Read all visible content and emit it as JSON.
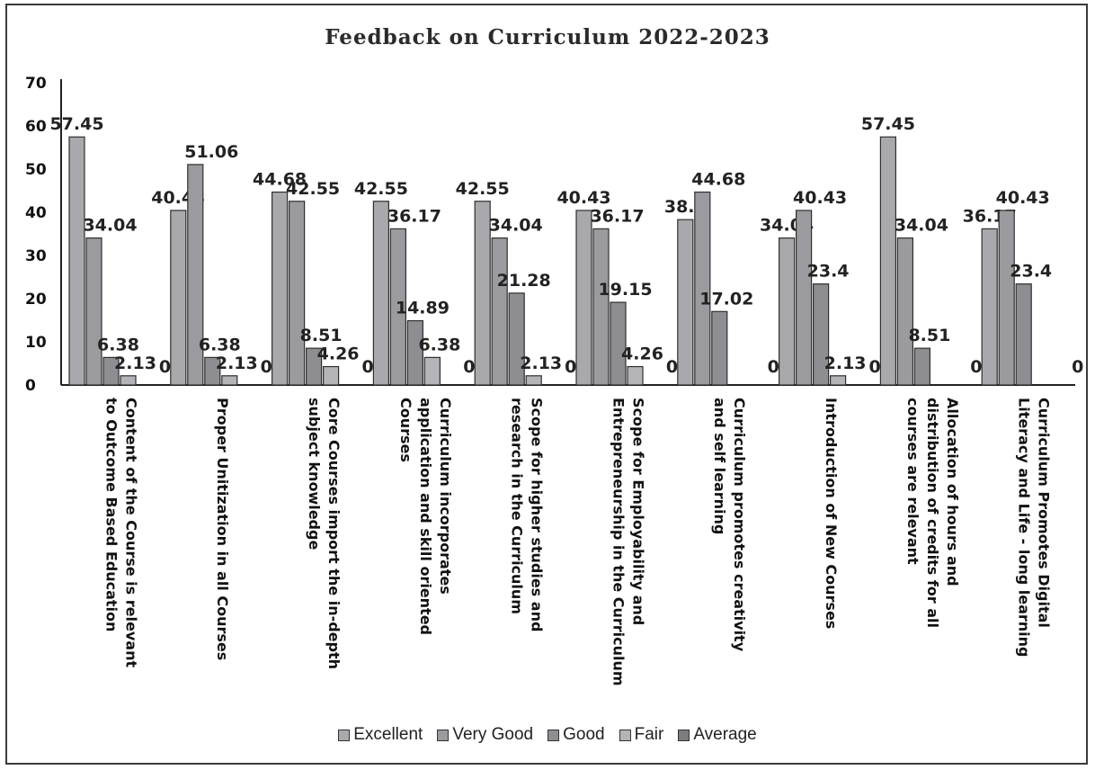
{
  "chart_data": {
    "type": "bar",
    "title": "Feedback on Curriculum 2022-2023",
    "xlabel": "",
    "ylabel": "",
    "ylim": [
      0,
      70
    ],
    "yticks": [
      0,
      10,
      20,
      30,
      40,
      50,
      60,
      70
    ],
    "grid": false,
    "legend_position": "bottom",
    "categories": [
      [
        "Content of the Course is relevant",
        "to Outcome Based Education"
      ],
      [
        "Proper Unitization in all Courses"
      ],
      [
        "Core Courses import the in-depth",
        "subject knowledge"
      ],
      [
        "Curriculum incorporates",
        "application and skill oriented",
        "Courses"
      ],
      [
        "Scope for higher studies and",
        "research in the Curriculum"
      ],
      [
        "Scope for Employability and",
        "Entrepreneurship in the Curriculum"
      ],
      [
        "Curriculum promotes creativity",
        "and self learning"
      ],
      [
        "Introduction of New Courses"
      ],
      [
        "Allocation of hours and",
        "distribution of credits for all",
        "courses are relevant"
      ],
      [
        "Curriculum Promotes Digital",
        "Literacy and Life - long learning"
      ]
    ],
    "series": [
      {
        "name": "Excellent",
        "color": "#a9a9ad",
        "values": [
          57.45,
          40.43,
          44.68,
          42.55,
          42.55,
          40.43,
          38.3,
          34.04,
          57.45,
          36.17
        ],
        "labels": [
          "57.45",
          "40.43",
          "44.68",
          "42.55",
          "42.55",
          "40.43",
          "38.3",
          "34.04",
          "57.45",
          "36.17"
        ]
      },
      {
        "name": "Very Good",
        "color": "#9b9b9f",
        "values": [
          34.04,
          51.06,
          42.55,
          36.17,
          34.04,
          36.17,
          44.68,
          40.43,
          34.04,
          40.43
        ],
        "labels": [
          "34.04",
          "51.06",
          "42.55",
          "36.17",
          "34.04",
          "36.17",
          "44.68",
          "40.43",
          "34.04",
          "40.43"
        ]
      },
      {
        "name": "Good",
        "color": "#8e8e92",
        "values": [
          6.38,
          6.38,
          8.51,
          14.89,
          21.28,
          19.15,
          17.02,
          23.4,
          8.51,
          23.4
        ],
        "labels": [
          "6.38",
          "6.38",
          "8.51",
          "14.89",
          "21.28",
          "19.15",
          "17.02",
          "23.4",
          "8.51",
          "23.4"
        ]
      },
      {
        "name": "Fair",
        "color": "#b4b4b8",
        "values": [
          2.13,
          2.13,
          4.26,
          6.38,
          2.13,
          4.26,
          0,
          2.13,
          0,
          0
        ],
        "labels": [
          "2.13",
          "2.13",
          "4.26",
          "6.38",
          "2.13",
          "4.26",
          "",
          "2.13",
          "",
          ""
        ]
      },
      {
        "name": "Average",
        "color": "#7c7c80",
        "values": [
          0,
          0,
          0,
          0,
          0,
          0,
          0,
          0,
          0,
          0
        ],
        "labels": [
          "0",
          "0",
          "0",
          "0",
          "0",
          "0",
          "0",
          "0",
          "0",
          "0"
        ]
      }
    ]
  }
}
